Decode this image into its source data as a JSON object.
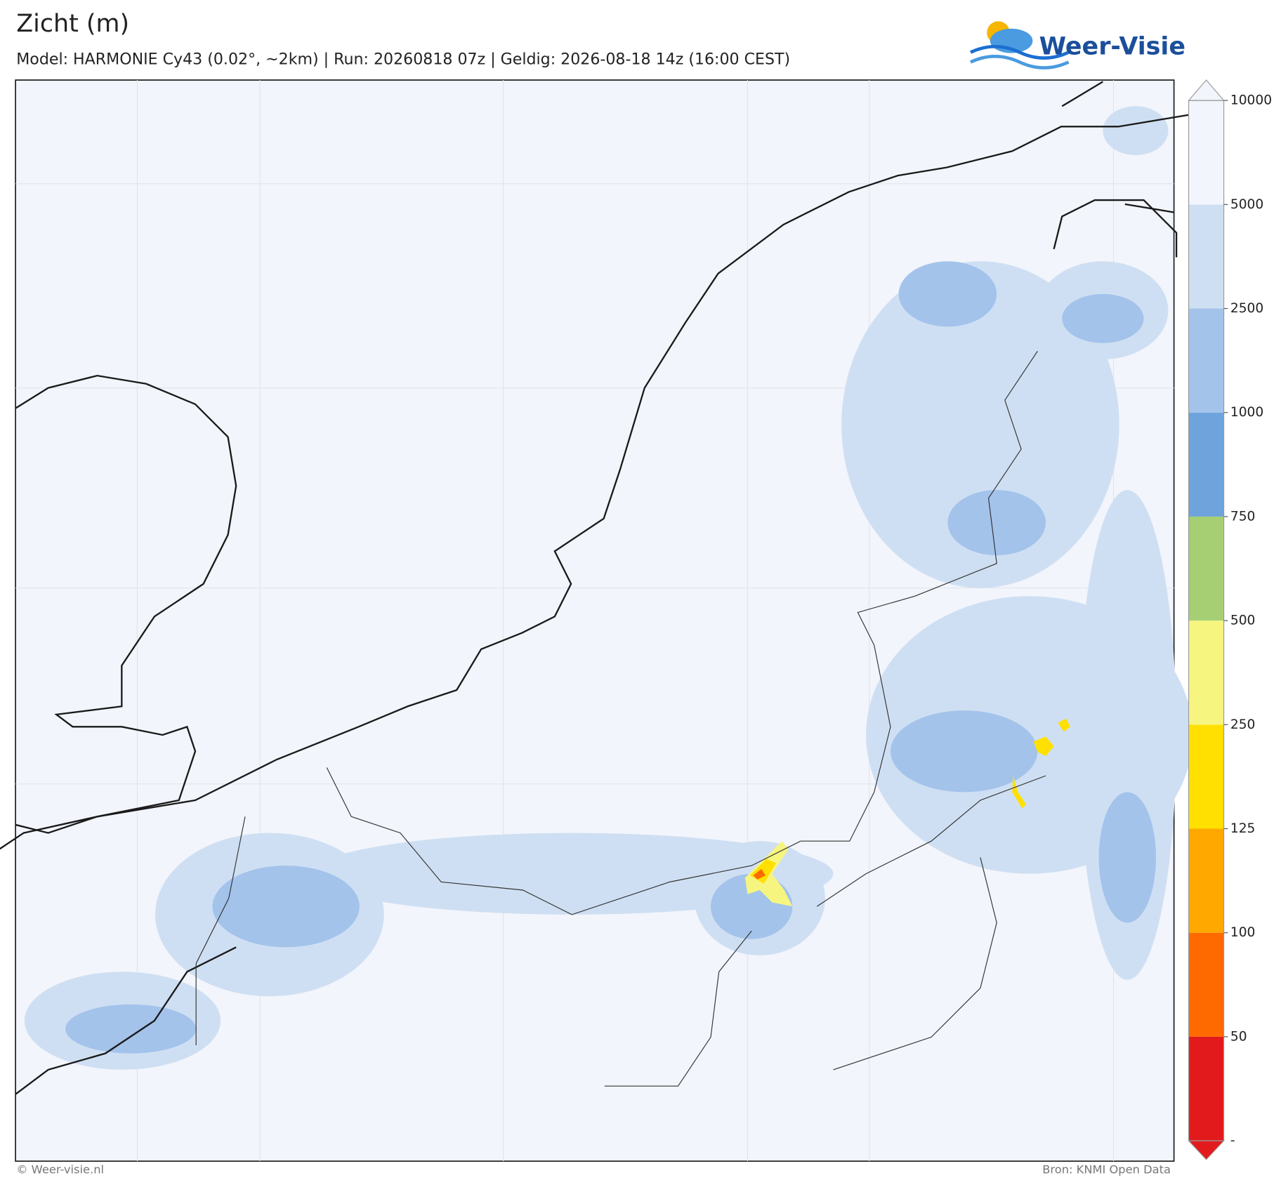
{
  "header": {
    "title": "Zicht (m)",
    "subtitle": "Model: HARMONIE Cy43 (0.02°, ~2km)  |  Run: 20260818 07z  |  Geldig: 2026-08-18 14z (16:00 CEST)",
    "logo": "Weer-Visie"
  },
  "colorbar": {
    "bottom_label": "-",
    "levels": [
      50,
      100,
      125,
      250,
      500,
      750,
      1000,
      2500,
      5000,
      10000
    ],
    "colors": [
      "#e31a1c",
      "#ff6a00",
      "#ffa800",
      "#ffe000",
      "#f5f580",
      "#a6cf74",
      "#6fa3dc",
      "#a3c3eb",
      "#cfdff3",
      "#f2f5fb"
    ]
  },
  "footer": {
    "left": "© Weer-visie.nl",
    "right": "Bron: KNMI Open Data"
  }
}
